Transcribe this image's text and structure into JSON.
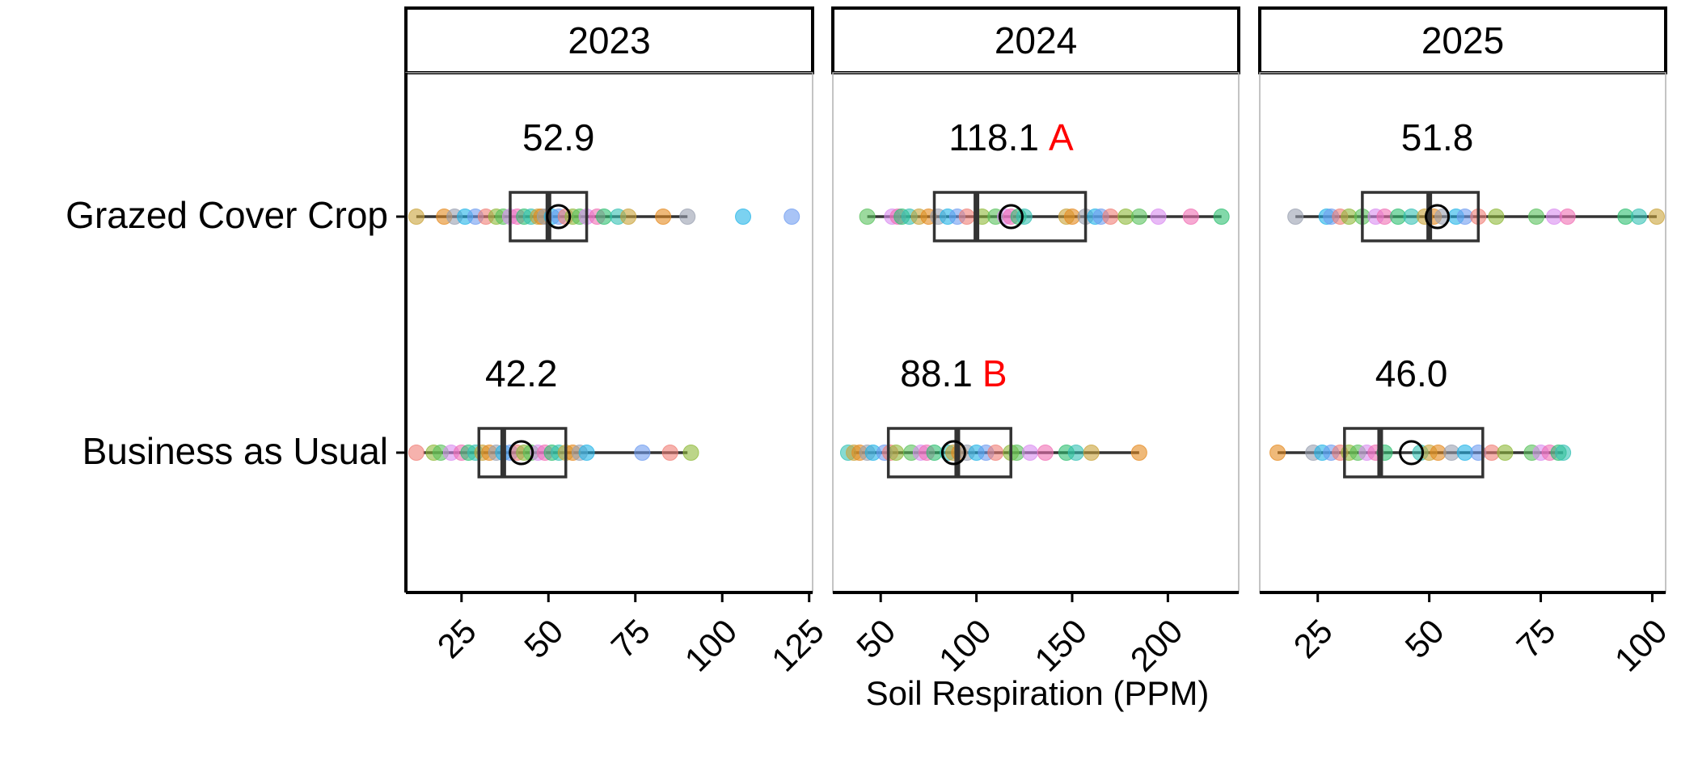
{
  "chart_data": {
    "type": "box",
    "orientation": "horizontal",
    "xlabel": "Soil Respiration (PPM)",
    "groups": [
      "Grazed Cover Crop",
      "Business as Usual"
    ],
    "panels": [
      {
        "strip": "2023",
        "xlim": [
          9,
          126
        ],
        "ticks": [
          25,
          50,
          75,
          100,
          125
        ],
        "tick_labels": [
          "25",
          "50",
          "75",
          "100",
          "125"
        ],
        "boxes": [
          {
            "group": "Grazed Cover Crop",
            "whisker_low": 12,
            "q1": 39,
            "median": 50,
            "q3": 61,
            "whisker_high": 90,
            "mean": 52.9,
            "mean_label": "52.9",
            "letter": "",
            "points": [
              12,
              20,
              23,
              26,
              29,
              32,
              35,
              37,
              39,
              41,
              43,
              45,
              47,
              48,
              49,
              51,
              53,
              55,
              57,
              59,
              61,
              64,
              66,
              70,
              73,
              83,
              90,
              106,
              120
            ]
          },
          {
            "group": "Business as Usual",
            "whisker_low": 14,
            "q1": 30,
            "median": 37,
            "q3": 55,
            "whisker_high": 90,
            "mean": 42.2,
            "mean_label": "42.2",
            "letter": "",
            "points": [
              12,
              17,
              19,
              22,
              25,
              27,
              29,
              31,
              33,
              35,
              37,
              39,
              41,
              43,
              45,
              47,
              49,
              51,
              53,
              55,
              57,
              59,
              61,
              77,
              85,
              91
            ]
          }
        ]
      },
      {
        "strip": "2024",
        "xlim": [
          25,
          237
        ],
        "ticks": [
          50,
          100,
          150,
          200
        ],
        "tick_labels": [
          "50",
          "100",
          "150",
          "200"
        ],
        "boxes": [
          {
            "group": "Grazed Cover Crop",
            "whisker_low": 43,
            "q1": 78,
            "median": 100,
            "q3": 157,
            "whisker_high": 228,
            "mean": 118.1,
            "mean_label": "118.1",
            "letter": "A",
            "points": [
              43,
              56,
              59,
              61,
              65,
              70,
              75,
              80,
              85,
              90,
              95,
              103,
              110,
              115,
              118,
              122,
              125,
              147,
              150,
              157,
              162,
              165,
              170,
              178,
              185,
              195,
              212,
              228
            ]
          },
          {
            "group": "Business as Usual",
            "whisker_low": 36,
            "q1": 54,
            "median": 90,
            "q3": 118,
            "whisker_high": 185,
            "mean": 88.1,
            "mean_label": "88.1",
            "letter": "B",
            "points": [
              33,
              36,
              39,
              43,
              46,
              52,
              55,
              58,
              66,
              71,
              74,
              78,
              85,
              88,
              91,
              95,
              100,
              105,
              110,
              118,
              121,
              128,
              136,
              147,
              152,
              160,
              185
            ]
          }
        ]
      },
      {
        "strip": "2025",
        "xlim": [
          12,
          103
        ],
        "ticks": [
          25,
          50,
          75,
          100
        ],
        "tick_labels": [
          "25",
          "50",
          "75",
          "100"
        ],
        "boxes": [
          {
            "group": "Grazed Cover Crop",
            "whisker_low": 20,
            "q1": 35,
            "median": 50,
            "q3": 61,
            "whisker_high": 101,
            "mean": 51.8,
            "mean_label": "51.8",
            "letter": "",
            "points": [
              20,
              27,
              28,
              30,
              32,
              35,
              38,
              40,
              43,
              46,
              49,
              51,
              53,
              56,
              58,
              61,
              65,
              74,
              78,
              81,
              94,
              97,
              101
            ]
          },
          {
            "group": "Business as Usual",
            "whisker_low": 16,
            "q1": 31,
            "median": 39,
            "q3": 62,
            "whisker_high": 80,
            "mean": 46.0,
            "mean_label": "46.0",
            "letter": "",
            "points": [
              16,
              24,
              26,
              28,
              30,
              32,
              34,
              36,
              38,
              40,
              48,
              50,
              52,
              55,
              58,
              61,
              64,
              67,
              73,
              75,
              77,
              79,
              80
            ]
          }
        ]
      }
    ]
  },
  "colors": {
    "box_stroke": "#333333",
    "axis": "#000000",
    "letter": "#ff0000",
    "point_palette": [
      "#c9a33a",
      "#f07f77",
      "#2fbf71",
      "#23b4e8",
      "#d98cf0",
      "#e58a1f",
      "#8fb93a",
      "#36c2b4",
      "#6f9cf0",
      "#f06fb4",
      "#9aa0b0",
      "#5ac25e"
    ]
  }
}
